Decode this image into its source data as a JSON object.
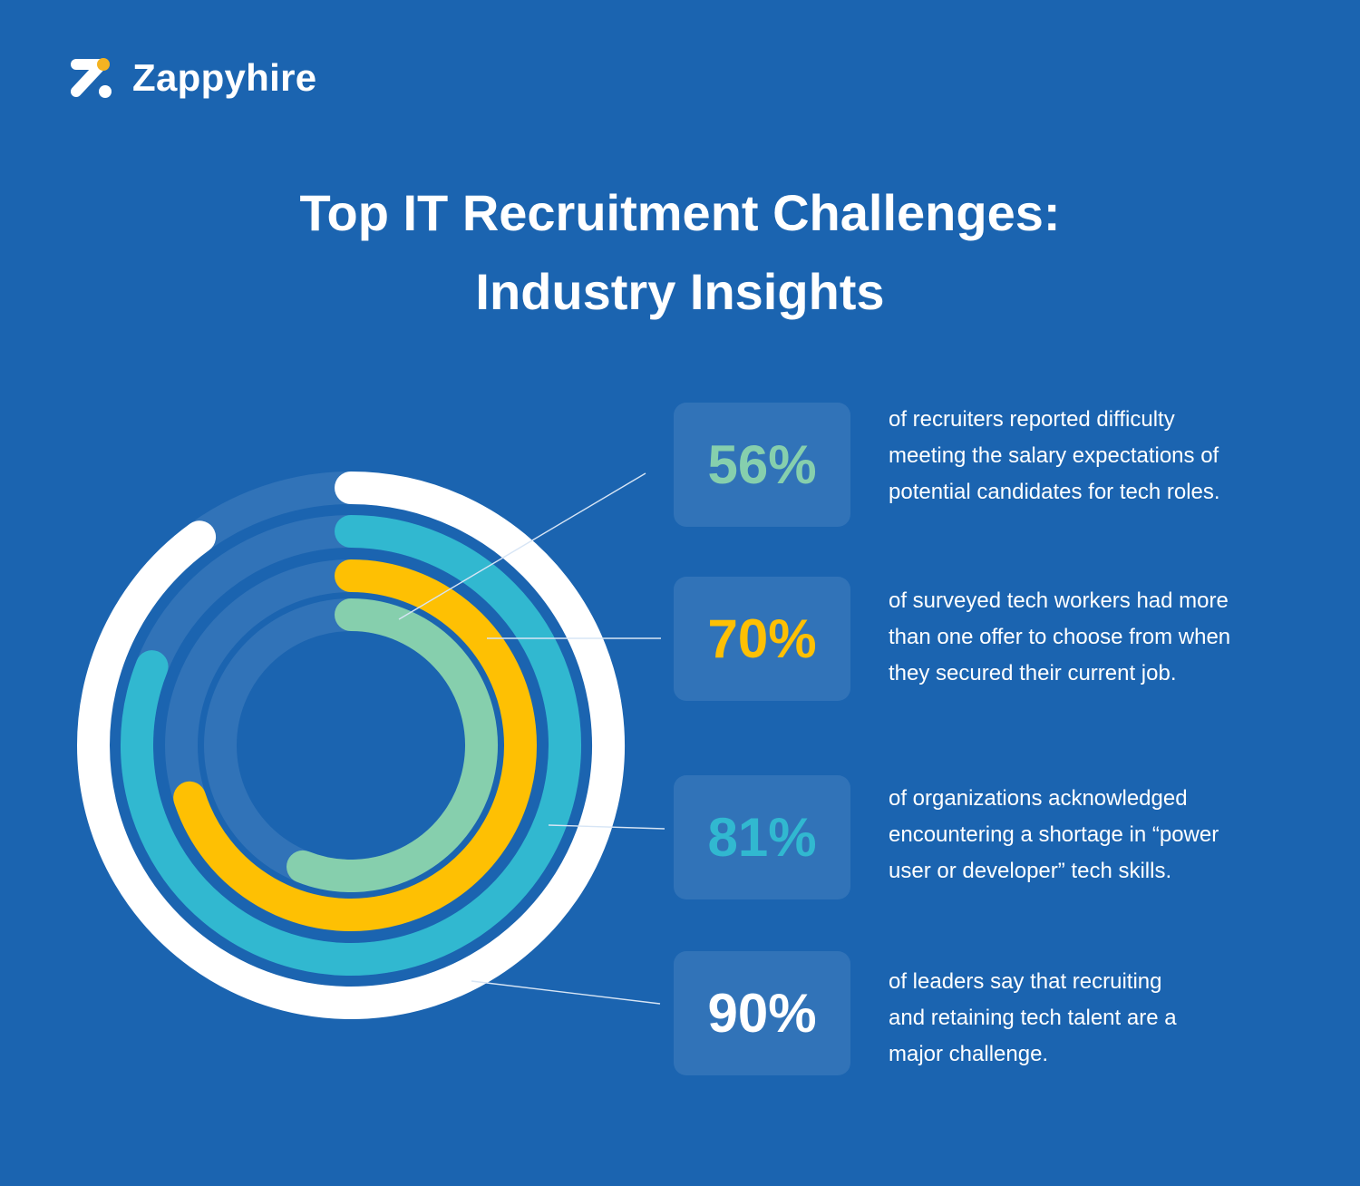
{
  "brand": {
    "name": "Zappyhire",
    "logo_icon": "zappyhire-z-logo-icon",
    "accent": "#f4b321"
  },
  "header": {
    "title_line1": "Top IT Recruitment Challenges:",
    "title_line2": "Industry Insights"
  },
  "colors": {
    "background": "#1b64b0",
    "track": "#3173b8",
    "box": "#3173b8"
  },
  "stats": [
    {
      "value": "56%",
      "color": "#86cfad",
      "description": "of recruiters reported difficulty meeting the salary expectations of potential candidates for tech roles.",
      "lines": [
        "of recruiters reported difficulty",
        "meeting the salary expectations of",
        "potential candidates for tech roles."
      ]
    },
    {
      "value": "70%",
      "color": "#fec003",
      "description": "of surveyed tech workers had more than one offer to choose from when they secured their current job.",
      "lines": [
        "of surveyed tech workers had more",
        "than one offer to choose from when",
        "they secured their current job."
      ]
    },
    {
      "value": "81%",
      "color": "#31b8d0",
      "description": "of organizations acknowledged encountering a shortage in “power user or developer” tech skills.",
      "lines": [
        "of organizations acknowledged",
        "encountering a shortage in “power",
        "user or developer” tech skills."
      ]
    },
    {
      "value": "90%",
      "color": "#ffffff",
      "description": "of leaders say that recruiting and retaining tech talent are a major challenge.",
      "lines": [
        "of leaders say that recruiting",
        "and retaining tech talent are a",
        "major challenge."
      ]
    }
  ],
  "chart_data": {
    "type": "radial-bar",
    "title": "Top IT Recruitment Challenges: Industry Insights",
    "categories": [
      "Recruiters reporting difficulty meeting salary expectations",
      "Tech workers with more than one offer",
      "Organizations with shortage in power user/developer skills",
      "Leaders saying recruiting and retaining tech talent is a major challenge"
    ],
    "values": [
      56,
      70,
      81,
      90
    ],
    "unit": "%",
    "ring_order_inner_to_outer": [
      "56%",
      "70%",
      "81%",
      "90%"
    ],
    "series_colors": [
      "#86cfad",
      "#fec003",
      "#31b8d0",
      "#ffffff"
    ],
    "range": [
      0,
      100
    ],
    "legend_position": "right"
  }
}
